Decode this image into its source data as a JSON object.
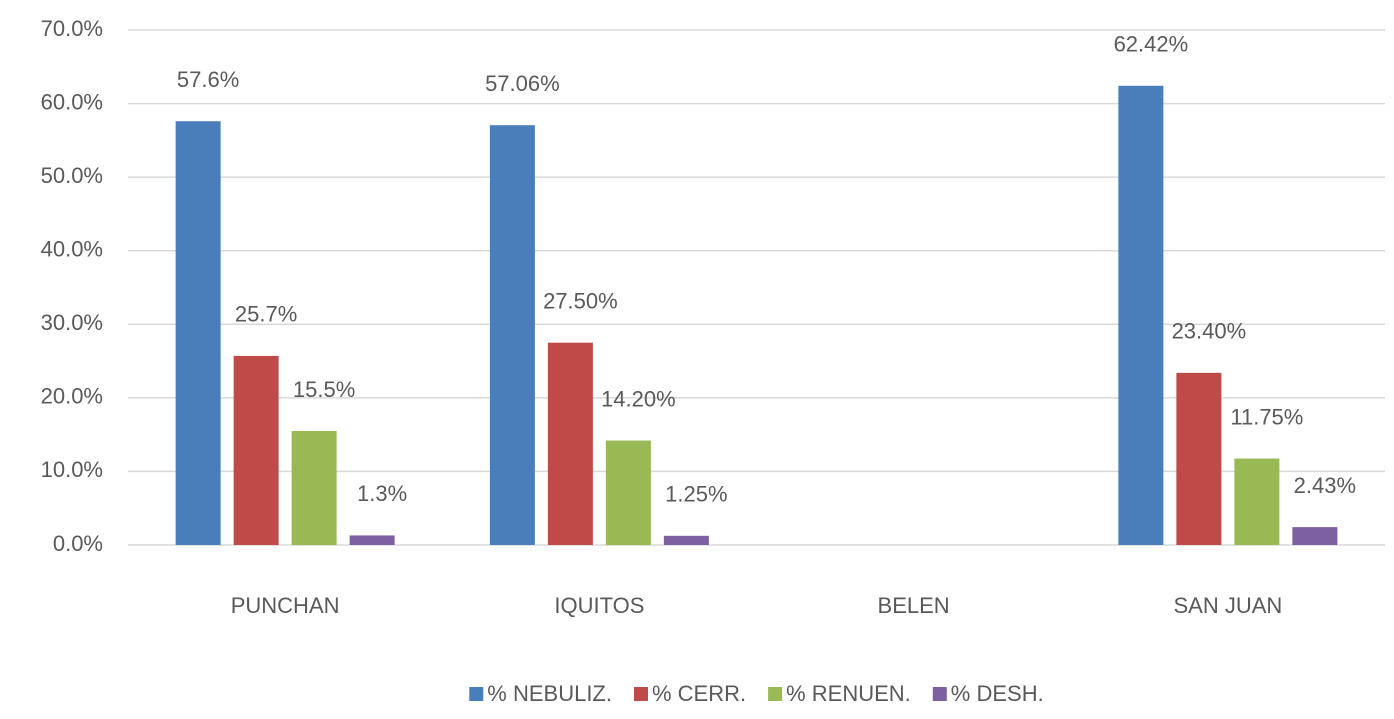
{
  "chart_data": {
    "type": "bar",
    "categories": [
      "PUNCHAN",
      "IQUITOS",
      "BELEN",
      "SAN JUAN"
    ],
    "series": [
      {
        "name": "% NEBULIZ.",
        "color": "#4a7ebb",
        "values": [
          57.6,
          57.06,
          null,
          62.42
        ],
        "value_labels": [
          "57.6%",
          "57.06%",
          null,
          "62.42%"
        ]
      },
      {
        "name": "% CERR.",
        "color": "#be4b48",
        "values": [
          25.7,
          27.5,
          null,
          23.4
        ],
        "value_labels": [
          "25.7%",
          "27.50%",
          null,
          "23.40%"
        ]
      },
      {
        "name": "% RENUEN.",
        "color": "#98b954",
        "values": [
          15.5,
          14.2,
          null,
          11.75
        ],
        "value_labels": [
          "15.5%",
          "14.20%",
          null,
          "11.75%"
        ]
      },
      {
        "name": "% DESH.",
        "color": "#7d60a0",
        "values": [
          1.3,
          1.25,
          null,
          2.43
        ],
        "value_labels": [
          "1.3%",
          "1.25%",
          null,
          "2.43%"
        ]
      }
    ],
    "ylim": [
      0,
      70
    ],
    "yticks": [
      {
        "value": 0,
        "label": "0.0%"
      },
      {
        "value": 10,
        "label": "10.0%"
      },
      {
        "value": 20,
        "label": "20.0%"
      },
      {
        "value": 30,
        "label": "30.0%"
      },
      {
        "value": 40,
        "label": "40.0%"
      },
      {
        "value": 50,
        "label": "50.0%"
      },
      {
        "value": 60,
        "label": "60.0%"
      },
      {
        "value": 70,
        "label": "70.0%"
      }
    ],
    "grid": true,
    "legend": "bottom"
  }
}
